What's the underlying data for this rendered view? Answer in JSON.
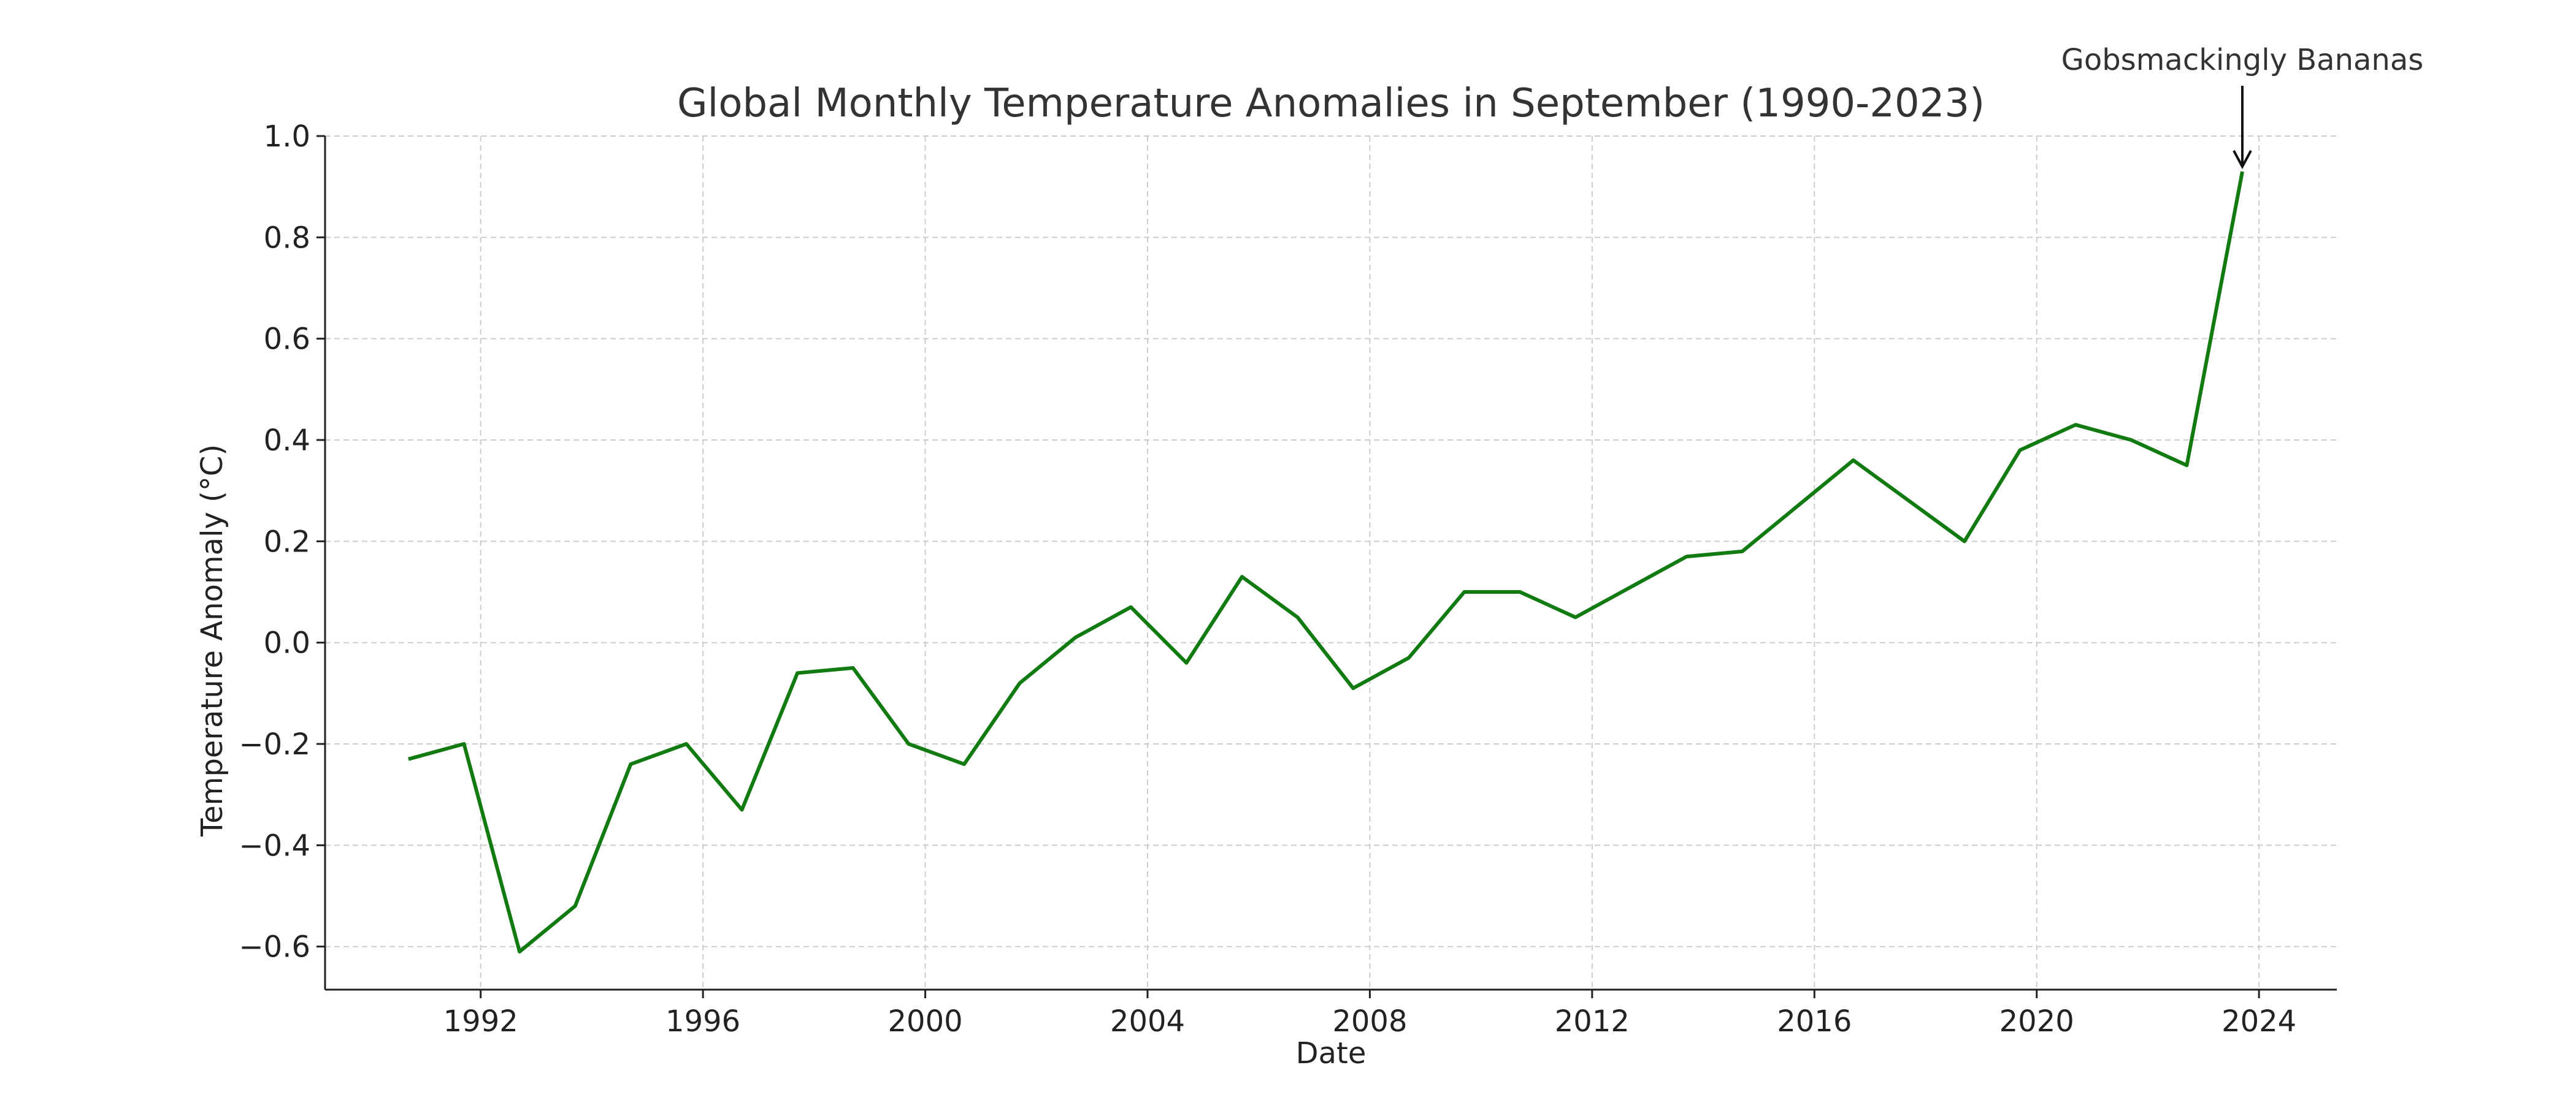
{
  "chart_data": {
    "type": "line",
    "title": "Global Monthly Temperature Anomalies in September (1990-2023)",
    "xlabel": "Date",
    "ylabel": "Temperature Anomaly (°C)",
    "xlim": [
      1989.2,
      2025.4
    ],
    "ylim": [
      -0.685,
      1.0
    ],
    "x_ticks": [
      1992,
      1996,
      2000,
      2004,
      2008,
      2012,
      2016,
      2020,
      2024
    ],
    "y_ticks": [
      -0.6,
      -0.4,
      -0.2,
      0.0,
      0.2,
      0.4,
      0.6,
      0.8,
      1.0
    ],
    "y_tick_labels": [
      "−0.6",
      "−0.4",
      "−0.2",
      "0.0",
      "0.2",
      "0.4",
      "0.6",
      "0.8",
      "1.0"
    ],
    "grid": true,
    "series": [
      {
        "color": "#117a11",
        "x": [
          1990.7,
          1991.7,
          1992.7,
          1993.7,
          1994.7,
          1995.7,
          1996.7,
          1997.7,
          1998.7,
          1999.7,
          2000.7,
          2001.7,
          2002.7,
          2003.7,
          2004.7,
          2005.7,
          2006.7,
          2007.7,
          2008.7,
          2009.7,
          2010.7,
          2011.7,
          2012.7,
          2013.7,
          2014.7,
          2015.7,
          2016.7,
          2017.7,
          2018.7,
          2019.7,
          2020.7,
          2021.7,
          2022.7,
          2023.7
        ],
        "values": [
          -0.23,
          -0.2,
          -0.61,
          -0.52,
          -0.24,
          -0.2,
          -0.33,
          -0.06,
          -0.05,
          -0.2,
          -0.24,
          -0.08,
          0.01,
          0.07,
          -0.04,
          0.13,
          0.05,
          -0.09,
          -0.03,
          0.1,
          0.1,
          0.05,
          0.11,
          0.17,
          0.18,
          0.27,
          0.36,
          0.28,
          0.2,
          0.38,
          0.43,
          0.4,
          0.35,
          0.93
        ]
      }
    ],
    "annotation": {
      "text": "Gobsmackingly Bananas",
      "x": 2023.7,
      "y": 0.93
    }
  }
}
